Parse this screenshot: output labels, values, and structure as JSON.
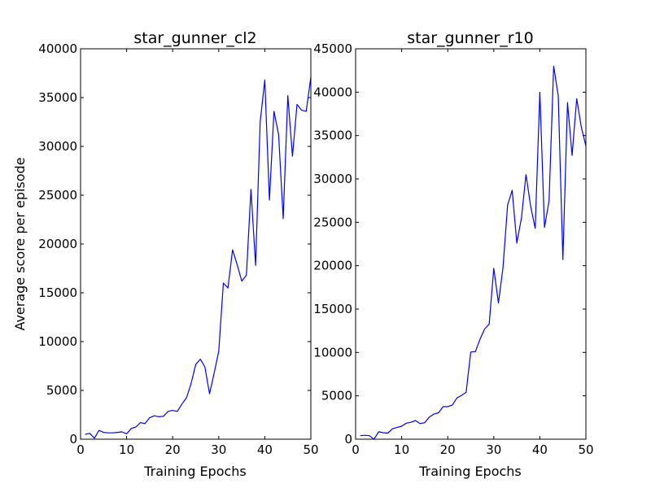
{
  "chart_data": [
    {
      "type": "line",
      "title": "star_gunner_cl2",
      "xlabel": "Training Epochs",
      "ylabel": "Average score per episode",
      "xlim": [
        0,
        50
      ],
      "ylim": [
        0,
        40000
      ],
      "xticks": [
        0,
        10,
        20,
        30,
        40,
        50
      ],
      "yticks": [
        0,
        5000,
        10000,
        15000,
        20000,
        25000,
        30000,
        35000,
        40000
      ],
      "grid": false,
      "line_color": "#0000ff",
      "series": [
        {
          "x": [
            1,
            2,
            3,
            4,
            5,
            6,
            7,
            8,
            9,
            10,
            11,
            12,
            13,
            14,
            15,
            16,
            17,
            18,
            19,
            20,
            21,
            22,
            23,
            24,
            25,
            26,
            27,
            28,
            29,
            30,
            31,
            32,
            33,
            34,
            35,
            36,
            37,
            38,
            39,
            40,
            41,
            42,
            43,
            44,
            45,
            46,
            47,
            48,
            49,
            50
          ],
          "values": [
            500,
            600,
            100,
            900,
            700,
            650,
            650,
            700,
            750,
            550,
            1100,
            1250,
            1700,
            1600,
            2200,
            2400,
            2300,
            2350,
            2850,
            2950,
            2850,
            3600,
            4250,
            5700,
            7650,
            8200,
            7400,
            4650,
            6750,
            9000,
            16000,
            15500,
            19400,
            17900,
            16200,
            16800,
            25600,
            17800,
            32500,
            36800,
            24500,
            33600,
            31200,
            22600,
            35200,
            29000,
            34300,
            33700,
            33600,
            37100
          ]
        }
      ]
    },
    {
      "type": "line",
      "title": "star_gunner_r10",
      "xlabel": "Training Epochs",
      "ylabel": "",
      "xlim": [
        0,
        50
      ],
      "ylim": [
        0,
        45000
      ],
      "xticks": [
        0,
        10,
        20,
        30,
        40,
        50
      ],
      "yticks": [
        0,
        5000,
        10000,
        15000,
        20000,
        25000,
        30000,
        35000,
        40000,
        45000
      ],
      "grid": false,
      "line_color": "#0000ff",
      "series": [
        {
          "x": [
            1,
            2,
            3,
            4,
            5,
            6,
            7,
            8,
            9,
            10,
            11,
            12,
            13,
            14,
            15,
            16,
            17,
            18,
            19,
            20,
            21,
            22,
            23,
            24,
            25,
            26,
            27,
            28,
            29,
            30,
            31,
            32,
            33,
            34,
            35,
            36,
            37,
            38,
            39,
            40,
            41,
            42,
            43,
            44,
            45,
            46,
            47,
            48,
            49,
            50
          ],
          "values": [
            400,
            450,
            400,
            0,
            850,
            750,
            700,
            1200,
            1350,
            1500,
            1850,
            1950,
            2150,
            1800,
            1900,
            2550,
            2900,
            3050,
            3750,
            3750,
            3950,
            4750,
            5050,
            5400,
            10050,
            10100,
            11500,
            12700,
            13250,
            19700,
            15700,
            19750,
            27000,
            28700,
            22600,
            25500,
            30500,
            26850,
            24300,
            40000,
            24400,
            27450,
            43000,
            39600,
            20700,
            38800,
            32700,
            39250,
            36000,
            33800
          ]
        }
      ]
    }
  ]
}
